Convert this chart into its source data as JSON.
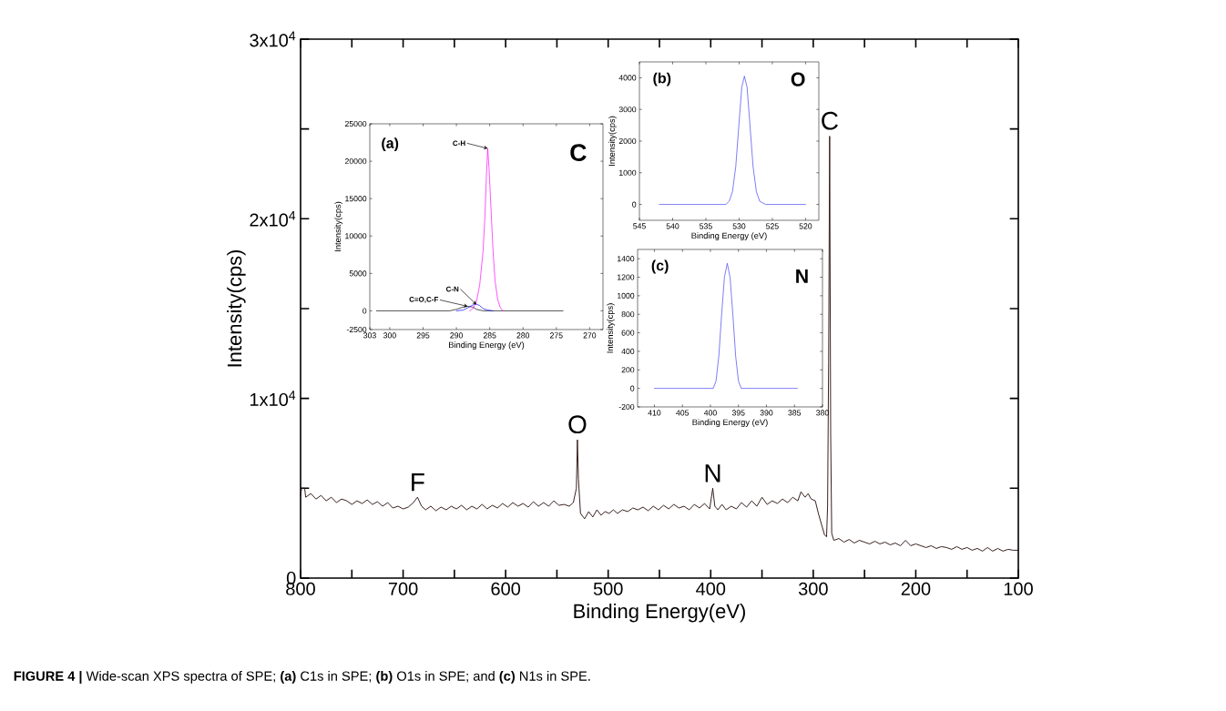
{
  "chart_data": [
    {
      "type": "line",
      "xlabel": "Binding Energy(eV)",
      "ylabel": "Intensity(cps)",
      "xlim": [
        800,
        100
      ],
      "ylim": [
        0,
        30000
      ],
      "xticks": [
        800,
        {
          "value": 750,
          "label": null
        },
        700,
        {
          "value": 650,
          "label": null
        },
        600,
        {
          "value": 550,
          "label": null
        },
        500,
        {
          "value": 450,
          "label": null
        },
        400,
        {
          "value": 350,
          "label": null
        },
        300,
        {
          "value": 250,
          "label": null
        },
        200,
        {
          "value": 150,
          "label": null
        },
        100
      ],
      "yticks": [
        0,
        {
          "value": 5000,
          "label": null
        },
        {
          "value": 10000,
          "label": "1x10$^{4}$"
        },
        {
          "value": 15000,
          "label": null
        },
        {
          "value": 20000,
          "label": "2x10$^{4}$"
        },
        {
          "value": 25000,
          "label": null
        },
        {
          "value": 30000,
          "label": "3x10$^{4}$"
        }
      ],
      "series": [
        {
          "color": "#2b1010",
          "x": [
            800,
            799,
            796,
            795,
            790,
            785,
            780,
            775,
            770,
            765,
            760,
            755,
            750,
            745,
            740,
            735,
            730,
            725,
            720,
            715,
            710,
            705,
            700,
            695,
            690,
            686,
            682,
            678,
            673,
            668,
            663,
            658,
            653,
            648,
            643,
            638,
            633,
            628,
            623,
            618,
            613,
            608,
            603,
            598,
            593,
            588,
            583,
            578,
            573,
            568,
            563,
            558,
            553,
            548,
            543,
            538,
            534,
            531,
            530,
            529,
            527,
            523,
            519,
            515,
            511,
            507,
            503,
            499,
            495,
            491,
            486,
            481,
            476,
            471,
            466,
            461,
            456,
            451,
            446,
            441,
            436,
            431,
            426,
            421,
            416,
            411,
            406,
            401,
            398,
            396,
            393,
            389,
            385,
            380,
            375,
            370,
            365,
            360,
            355,
            350,
            345,
            340,
            335,
            330,
            325,
            320,
            315,
            312,
            308,
            305,
            302,
            298,
            295,
            292,
            289,
            287,
            286,
            285,
            284,
            283,
            282,
            280,
            275,
            270,
            265,
            260,
            255,
            250,
            245,
            240,
            235,
            230,
            225,
            220,
            215,
            210,
            205,
            200,
            195,
            190,
            185,
            180,
            175,
            170,
            165,
            160,
            155,
            150,
            145,
            140,
            135,
            130,
            125,
            120,
            115,
            110,
            105,
            100
          ],
          "values": [
            4600,
            5000,
            5000,
            4500,
            4700,
            4400,
            4600,
            4300,
            4500,
            4200,
            4400,
            4300,
            4100,
            4300,
            4150,
            4350,
            4100,
            4250,
            4000,
            4200,
            3900,
            4000,
            3850,
            3950,
            4200,
            4500,
            4000,
            3800,
            4000,
            3750,
            3950,
            3800,
            4000,
            3850,
            4050,
            3800,
            4000,
            3850,
            4100,
            3850,
            4050,
            3900,
            4150,
            3950,
            4200,
            4000,
            4150,
            3950,
            4250,
            4000,
            4200,
            4000,
            4300,
            4050,
            4100,
            4000,
            4200,
            5000,
            7700,
            5500,
            3600,
            3300,
            3700,
            3400,
            3800,
            3500,
            3700,
            3600,
            3800,
            3600,
            3800,
            3700,
            3900,
            3800,
            3950,
            3750,
            4000,
            3800,
            4050,
            3850,
            4100,
            3900,
            4000,
            3800,
            4100,
            3900,
            4150,
            3850,
            5000,
            4000,
            3800,
            4100,
            3800,
            4000,
            3850,
            4200,
            3950,
            4300,
            4000,
            4500,
            4100,
            4300,
            4150,
            4400,
            4200,
            4500,
            4300,
            4800,
            4500,
            4700,
            4400,
            4300,
            3600,
            3000,
            2400,
            2300,
            4000,
            12000,
            24600,
            8000,
            2500,
            2100,
            2200,
            2000,
            2150,
            1950,
            2100,
            2000,
            1900,
            2050,
            1900,
            2000,
            1850,
            1950,
            1800,
            2100,
            1800,
            1900,
            1800,
            1700,
            1800,
            1650,
            1750,
            1700,
            1600,
            1750,
            1600,
            1700,
            1550,
            1650,
            1500,
            1700,
            1500,
            1650,
            1500,
            1600,
            1550,
            1550
          ]
        }
      ],
      "annotations": [
        {
          "text": "F",
          "x": 686,
          "y": 4500
        },
        {
          "text": "O",
          "x": 530,
          "y": 7700
        },
        {
          "text": "N",
          "x": 398,
          "y": 5000
        },
        {
          "text": "C",
          "x": 284,
          "y": 24600
        },
        "**FIGURE 4 |** Wide-scan XPS spectra of SPE; **(a)** C1s in SPE; **(b)** O1s in SPE; and **(c)** N1s in SPE."
      ]
    },
    {
      "type": "line",
      "xlabel": "Binding Energy (eV)",
      "ylabel": "Intensity(cps)",
      "xlim": [
        303,
        268
      ],
      "ylim": [
        -2500,
        25000
      ],
      "xticks": [
        303,
        300,
        295,
        290,
        285,
        280,
        275,
        270
      ],
      "yticks": [
        -2500,
        0,
        5000,
        10000,
        15000,
        20000,
        25000
      ],
      "series": [
        {
          "color": "#000000",
          "x": [
            302,
            291,
            290,
            289,
            288.3,
            287.5,
            287,
            286,
            274
          ],
          "values": [
            0,
            0,
            200,
            500,
            600,
            500,
            200,
            0,
            0
          ]
        },
        {
          "color": "#0000ff",
          "x": [
            290,
            289,
            288.3,
            287.5,
            287,
            286.5,
            286,
            285.3,
            284.5
          ],
          "values": [
            0,
            100,
            400,
            800,
            900,
            700,
            300,
            100,
            0
          ]
        },
        {
          "color": "#ff00ff",
          "x": [
            288,
            287.5,
            287,
            286.5,
            286,
            285.7,
            285.5,
            285.3,
            285.1,
            284.8,
            284.5,
            284.2,
            283.8,
            283.4,
            283
          ],
          "values": [
            0,
            300,
            1200,
            3500,
            8000,
            13000,
            18000,
            21700,
            19000,
            13500,
            8000,
            4000,
            1500,
            400,
            0
          ]
        }
      ],
      "annotations": [
        "(a)",
        "C",
        {
          "text": "C-H",
          "x": 285.3,
          "y": 21700
        },
        {
          "text": "C-N",
          "x": 287,
          "y": 850
        },
        {
          "text": "C=O,C-F",
          "x": 288.3,
          "y": 600
        }
      ]
    },
    {
      "type": "line",
      "xlabel": "Binding Energy (eV)",
      "ylabel": "Intensity(cps)",
      "xlim": [
        545,
        518
      ],
      "ylim": [
        -500,
        4500
      ],
      "xticks": [
        545,
        540,
        535,
        530,
        525,
        520
      ],
      "yticks": [
        0,
        1000,
        2000,
        3000,
        4000
      ],
      "series": [
        {
          "color": "#3c3cf0",
          "x": [
            542,
            532,
            531.5,
            531,
            530.5,
            530,
            529.6,
            529.2,
            528.8,
            528.4,
            527.9,
            527.4,
            526.9,
            526,
            520
          ],
          "values": [
            0,
            0,
            100,
            400,
            1200,
            2600,
            3700,
            4050,
            3700,
            2600,
            1200,
            400,
            100,
            0,
            0
          ]
        }
      ],
      "annotations": [
        "(b)",
        "O"
      ]
    },
    {
      "type": "line",
      "xlabel": "Binding Energy (eV)",
      "ylabel": "Intensity(cps)",
      "xlim": [
        413,
        380
      ],
      "ylim": [
        -200,
        1500
      ],
      "xticks": [
        410,
        405,
        400,
        395,
        390,
        385,
        380
      ],
      "yticks": [
        -200,
        0,
        200,
        400,
        600,
        800,
        1000,
        1200,
        1400
      ],
      "series": [
        {
          "color": "#3c3cf0",
          "x": [
            410,
            399.5,
            399,
            398.5,
            398,
            397.5,
            397,
            396.5,
            396,
            395.5,
            395,
            394.5,
            384.5
          ],
          "values": [
            0,
            0,
            80,
            350,
            800,
            1200,
            1350,
            1200,
            800,
            350,
            80,
            0,
            0
          ]
        }
      ],
      "annotations": [
        "(c)",
        "N"
      ]
    }
  ]
}
